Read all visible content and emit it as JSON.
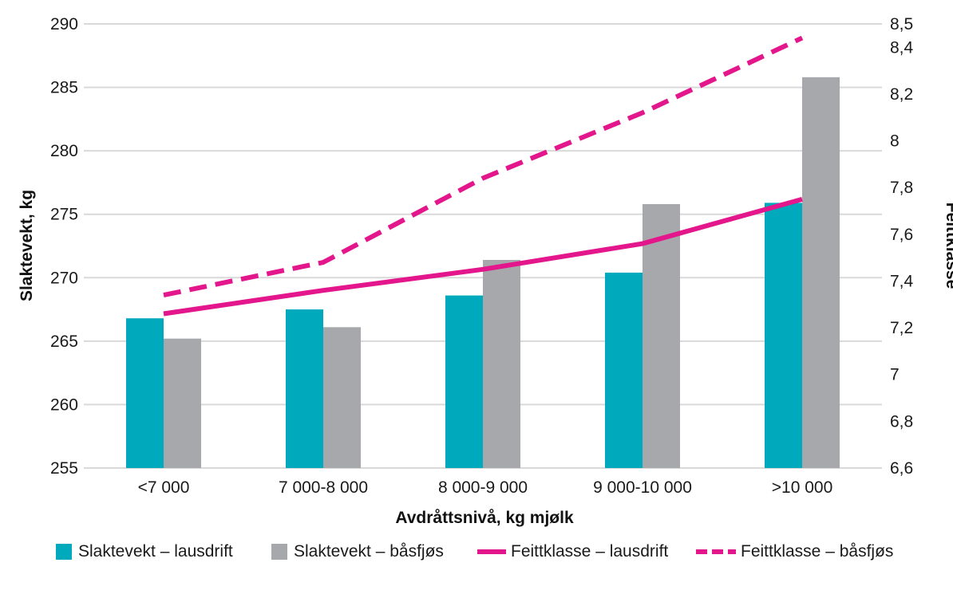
{
  "colors": {
    "lausdrift_bar": "#00a9bc",
    "basfjos_bar": "#a6a8ab",
    "feittklasse_line": "#e3168c",
    "grid": "#d9d9d9"
  },
  "legend": {
    "item1": "Slaktevekt – lausdrift",
    "item2": "Slaktevekt – båsfjøs",
    "item3": "Feittklasse – lausdrift",
    "item4": "Feittklasse – båsfjøs"
  },
  "chart_data": {
    "type": "bar",
    "categories": [
      "<7 000",
      "7 000-8 000",
      "8 000-9 000",
      "9 000-10 000",
      ">10 000"
    ],
    "xlabel": "Avdråttsnivå, kg mjølk",
    "ylabel": "Slaktevekt, kg",
    "y2label": "Feittklasse",
    "ylim": [
      255,
      290
    ],
    "yticks": [
      "255",
      "260",
      "265",
      "270",
      "275",
      "280",
      "285",
      "290"
    ],
    "y2lim": [
      6.6,
      8.5
    ],
    "y2ticks": [
      "6,6",
      "6,8",
      "7",
      "7,2",
      "7,4",
      "7,6",
      "7,8",
      "8",
      "8,2",
      "8,4",
      "8,5"
    ],
    "grid": true,
    "legend_position": "bottom",
    "bar_series": [
      {
        "name": "Slaktevekt – lausdrift",
        "values": [
          266.8,
          267.5,
          268.6,
          270.4,
          275.9
        ]
      },
      {
        "name": "Slaktevekt – båsfjøs",
        "values": [
          265.2,
          266.1,
          271.4,
          275.8,
          285.8
        ]
      }
    ],
    "line_series": [
      {
        "name": "Feittklasse – lausdrift",
        "axis": "right",
        "style": "solid",
        "values": [
          7.26,
          7.36,
          7.45,
          7.56,
          7.75
        ]
      },
      {
        "name": "Feittklasse – båsfjøs",
        "axis": "right",
        "style": "dashed",
        "values": [
          7.34,
          7.48,
          7.84,
          8.12,
          8.44
        ]
      }
    ]
  }
}
